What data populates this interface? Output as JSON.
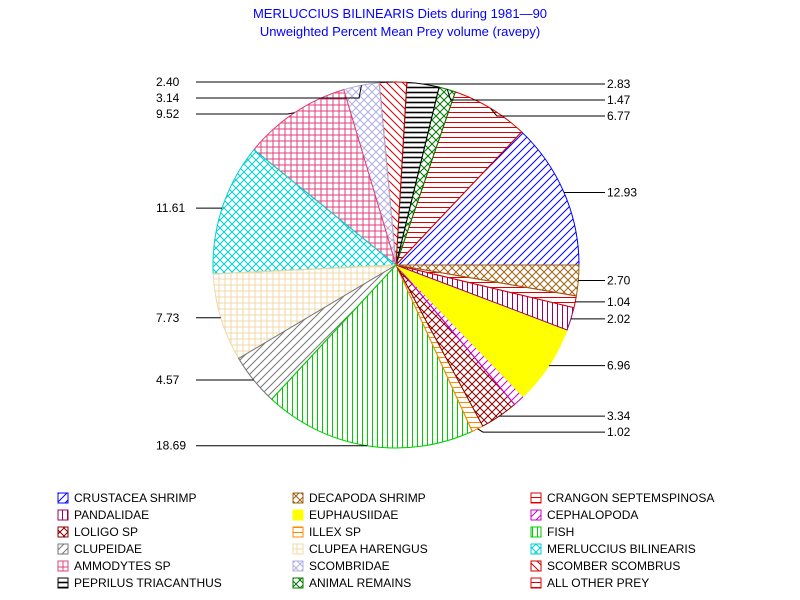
{
  "chart_data": {
    "type": "pie",
    "title": "MERLUCCIUS BILINEARIS Diets during 1981—90",
    "subtitle": "Unweighted Percent Mean Prey volume (ravepy)",
    "slices": [
      {
        "label": "CRUSTACEA SHRIMP",
        "value": 12.93,
        "value_label": "12.93",
        "color": "#0000ff",
        "pattern": "diag-up"
      },
      {
        "label": "CRANGON SEPTEMSPINOSA",
        "value": 6.77,
        "value_label": "6.77",
        "color": "#dd0000",
        "pattern": "hlines"
      },
      {
        "label": "ANIMAL REMAINS",
        "value": 1.47,
        "value_label": "1.47",
        "color": "#007700",
        "pattern": "crosshatch-diag"
      },
      {
        "label": "PEPRILUS TRIACANTHUS",
        "value": 2.83,
        "value_label": "2.83",
        "color": "#000000",
        "pattern": "hlines-heavy"
      },
      {
        "label": "SCOMBER SCOMBRUS",
        "value": 2.4,
        "value_label": "2.40",
        "color": "#cc0000",
        "pattern": "diag-down"
      },
      {
        "label": "SCOMBRIDAE",
        "value": 3.14,
        "value_label": "3.14",
        "color": "#b0b0e0",
        "pattern": "crosshatch-diag"
      },
      {
        "label": "AMMODYTES SP",
        "value": 9.52,
        "value_label": "9.52",
        "color": "#e0407a",
        "pattern": "grid"
      },
      {
        "label": "MERLUCCIUS BILINEARIS",
        "value": 11.61,
        "value_label": "11.61",
        "color": "#00d0d0",
        "pattern": "crosshatch-diag"
      },
      {
        "label": "CLUPEA HARENGUS",
        "value": 7.73,
        "value_label": "7.73",
        "color": "#f0d8a8",
        "pattern": "grid"
      },
      {
        "label": "CLUPEIDAE",
        "value": 4.57,
        "value_label": "4.57",
        "color": "#777777",
        "pattern": "diag-up"
      },
      {
        "label": "FISH",
        "value": 18.69,
        "value_label": "18.69",
        "color": "#00cc00",
        "pattern": "vlines"
      },
      {
        "label": "ILLEX SP",
        "value": 1.02,
        "value_label": "1.02",
        "color": "#ff8800",
        "pattern": "hlines"
      },
      {
        "label": "LOLIGO SP",
        "value": 3.34,
        "value_label": "3.34",
        "color": "#880000",
        "pattern": "crosshatch-diag"
      },
      {
        "label": "CEPHALOPODA",
        "value": 1.04,
        "value_label": "",
        "color": "#cc00cc",
        "pattern": "diag-up"
      },
      {
        "label": "EUPHAUSIIDAE",
        "value": 6.96,
        "value_label": "6.96",
        "color": "#ffff00",
        "pattern": "solid"
      },
      {
        "label": "PANDALIDAE",
        "value": 2.02,
        "value_label": "2.02",
        "color": "#990066",
        "pattern": "vlines"
      },
      {
        "label": "ALL OTHER PREY",
        "value": 1.04,
        "value_label": "1.04",
        "color": "#dd0000",
        "pattern": "hlines"
      },
      {
        "label": "DECAPODA SHRIMP",
        "value": 2.7,
        "value_label": "2.70",
        "color": "#a06010",
        "pattern": "crosshatch-diag"
      }
    ],
    "start_angle_deg": 0,
    "direction": "counterclockwise",
    "legend_position": "bottom",
    "legend": [
      "CRUSTACEA SHRIMP",
      "DECAPODA SHRIMP",
      "CRANGON SEPTEMSPINOSA",
      "PANDALIDAE",
      "EUPHAUSIIDAE",
      "CEPHALOPODA",
      "LOLIGO SP",
      "ILLEX SP",
      "FISH",
      "CLUPEIDAE",
      "CLUPEA HARENGUS",
      "MERLUCCIUS BILINEARIS",
      "AMMODYTES SP",
      "SCOMBRIDAE",
      "SCOMBER SCOMBRUS",
      "PEPRILUS TRIACANTHUS",
      "ANIMAL REMAINS",
      "ALL OTHER PREY"
    ]
  }
}
